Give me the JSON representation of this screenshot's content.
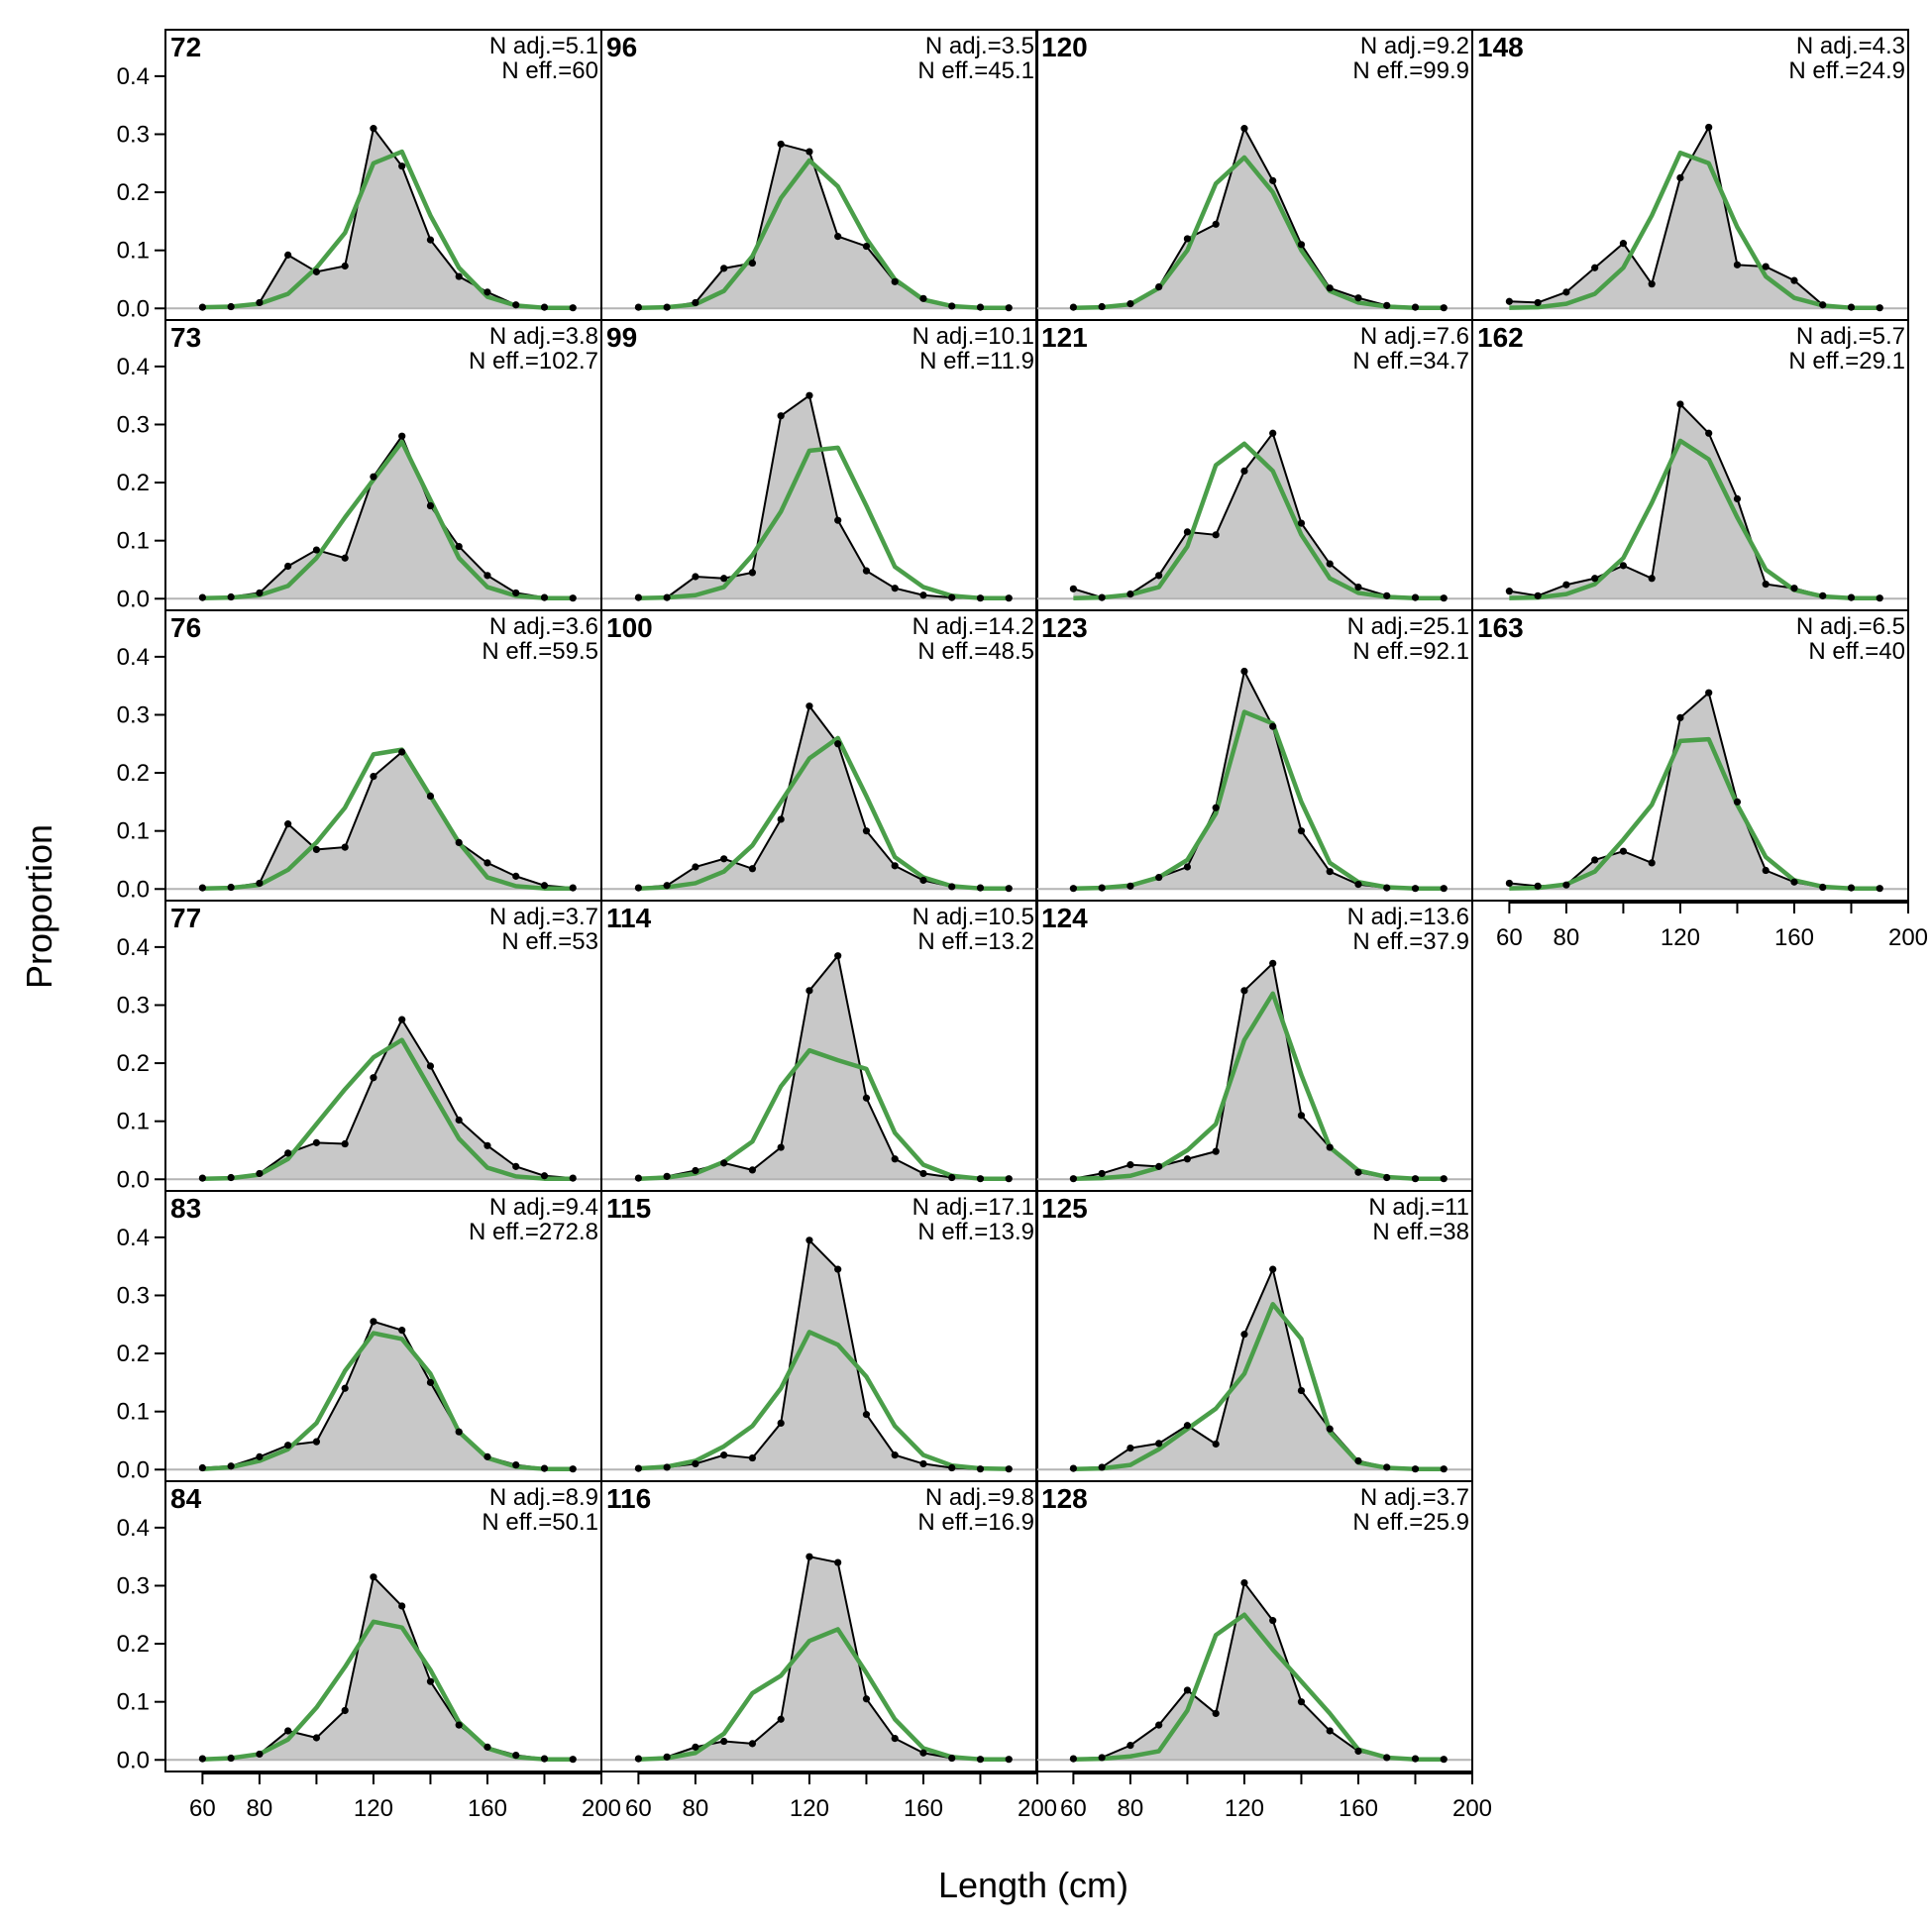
{
  "chart_data": {
    "type": "line",
    "xlabel": "Length (cm)",
    "ylabel": "Proportion",
    "xlim": [
      47,
      200
    ],
    "ylim": [
      -0.02,
      0.48
    ],
    "x_ticks": [
      60,
      80,
      120,
      160,
      200
    ],
    "x_minor_ticks": [
      100,
      140,
      180
    ],
    "y_ticks": [
      0,
      0.1,
      0.2,
      0.3,
      0.4
    ],
    "y_tick_labels": [
      "0.0",
      "0.1",
      "0.2",
      "0.3",
      "0.4"
    ],
    "x": [
      60,
      70,
      80,
      90,
      100,
      110,
      120,
      130,
      140,
      150,
      160,
      170,
      180,
      190
    ],
    "series_styles": {
      "observed": {
        "line": "#000000",
        "fill": "#c8c8c8"
      },
      "expected": {
        "line": "#4a9e49"
      }
    },
    "panels": [
      {
        "label": "72",
        "n_adj": "N adj.=5.1",
        "n_eff": "N eff.=60",
        "observed": [
          0.002,
          0.003,
          0.01,
          0.092,
          0.063,
          0.073,
          0.31,
          0.245,
          0.118,
          0.055,
          0.028,
          0.006,
          0.002,
          0.001
        ],
        "expected": [
          0.002,
          0.003,
          0.008,
          0.025,
          0.07,
          0.13,
          0.25,
          0.27,
          0.16,
          0.07,
          0.02,
          0.005,
          0.001,
          0.001
        ]
      },
      {
        "label": "96",
        "n_adj": "N adj.=3.5",
        "n_eff": "N eff.=45.1",
        "observed": [
          0.002,
          0.002,
          0.01,
          0.069,
          0.078,
          0.283,
          0.27,
          0.124,
          0.107,
          0.046,
          0.017,
          0.004,
          0.002,
          0.001
        ],
        "expected": [
          0.001,
          0.002,
          0.007,
          0.03,
          0.09,
          0.19,
          0.255,
          0.21,
          0.12,
          0.05,
          0.015,
          0.004,
          0.001,
          0.001
        ]
      },
      {
        "label": "120",
        "n_adj": "N adj.=9.2",
        "n_eff": "N eff.=99.9",
        "observed": [
          0.002,
          0.003,
          0.008,
          0.037,
          0.12,
          0.145,
          0.31,
          0.22,
          0.11,
          0.035,
          0.018,
          0.005,
          0.002,
          0.001
        ],
        "expected": [
          0.001,
          0.002,
          0.007,
          0.035,
          0.1,
          0.215,
          0.26,
          0.2,
          0.1,
          0.03,
          0.01,
          0.003,
          0.001,
          0.001
        ]
      },
      {
        "label": "148",
        "n_adj": "N adj.=4.3",
        "n_eff": "N eff.=24.9",
        "observed": [
          0.012,
          0.01,
          0.028,
          0.07,
          0.112,
          0.042,
          0.225,
          0.312,
          0.075,
          0.072,
          0.048,
          0.006,
          0.002,
          0.001
        ],
        "expected": [
          0.001,
          0.002,
          0.008,
          0.025,
          0.07,
          0.16,
          0.268,
          0.25,
          0.14,
          0.055,
          0.018,
          0.005,
          0.001,
          0.001
        ]
      },
      {
        "label": "73",
        "n_adj": "N adj.=3.8",
        "n_eff": "N eff.=102.7",
        "observed": [
          0.002,
          0.003,
          0.01,
          0.056,
          0.084,
          0.07,
          0.21,
          0.28,
          0.16,
          0.09,
          0.04,
          0.01,
          0.002,
          0.001
        ],
        "expected": [
          0.001,
          0.002,
          0.006,
          0.022,
          0.07,
          0.14,
          0.205,
          0.27,
          0.17,
          0.07,
          0.02,
          0.005,
          0.001,
          0.001
        ]
      },
      {
        "label": "99",
        "n_adj": "N adj.=10.1",
        "n_eff": "N eff.=11.9",
        "observed": [
          0.002,
          0.002,
          0.038,
          0.035,
          0.045,
          0.315,
          0.35,
          0.135,
          0.048,
          0.018,
          0.006,
          0.002,
          0.001,
          0.001
        ],
        "expected": [
          0.001,
          0.002,
          0.006,
          0.02,
          0.075,
          0.15,
          0.255,
          0.26,
          0.16,
          0.055,
          0.02,
          0.005,
          0.001,
          0.001
        ]
      },
      {
        "label": "121",
        "n_adj": "N adj.=7.6",
        "n_eff": "N eff.=34.7",
        "observed": [
          0.017,
          0.002,
          0.008,
          0.04,
          0.115,
          0.11,
          0.22,
          0.285,
          0.13,
          0.06,
          0.02,
          0.005,
          0.002,
          0.001
        ],
        "expected": [
          0.001,
          0.002,
          0.007,
          0.02,
          0.09,
          0.23,
          0.267,
          0.22,
          0.11,
          0.035,
          0.01,
          0.003,
          0.001,
          0.001
        ]
      },
      {
        "label": "162",
        "n_adj": "N adj.=5.7",
        "n_eff": "N eff.=29.1",
        "observed": [
          0.013,
          0.005,
          0.024,
          0.035,
          0.057,
          0.035,
          0.335,
          0.285,
          0.172,
          0.025,
          0.018,
          0.005,
          0.002,
          0.001
        ],
        "expected": [
          0.001,
          0.002,
          0.008,
          0.025,
          0.07,
          0.165,
          0.272,
          0.24,
          0.14,
          0.05,
          0.015,
          0.004,
          0.001,
          0.001
        ]
      },
      {
        "label": "76",
        "n_adj": "N adj.=3.6",
        "n_eff": "N eff.=59.5",
        "observed": [
          0.002,
          0.003,
          0.01,
          0.112,
          0.068,
          0.072,
          0.194,
          0.236,
          0.16,
          0.08,
          0.045,
          0.022,
          0.006,
          0.002
        ],
        "expected": [
          0.001,
          0.002,
          0.007,
          0.033,
          0.08,
          0.14,
          0.232,
          0.24,
          0.16,
          0.08,
          0.02,
          0.005,
          0.001,
          0.001
        ]
      },
      {
        "label": "100",
        "n_adj": "N adj.=14.2",
        "n_eff": "N eff.=48.5",
        "observed": [
          0.002,
          0.006,
          0.038,
          0.052,
          0.035,
          0.12,
          0.315,
          0.25,
          0.1,
          0.04,
          0.015,
          0.004,
          0.002,
          0.001
        ],
        "expected": [
          0.001,
          0.003,
          0.01,
          0.03,
          0.075,
          0.15,
          0.225,
          0.26,
          0.16,
          0.055,
          0.02,
          0.005,
          0.001,
          0.001
        ]
      },
      {
        "label": "123",
        "n_adj": "N adj.=25.1",
        "n_eff": "N eff.=92.1",
        "observed": [
          0.001,
          0.002,
          0.005,
          0.02,
          0.038,
          0.14,
          0.375,
          0.28,
          0.1,
          0.03,
          0.008,
          0.002,
          0.001,
          0.001
        ],
        "expected": [
          0.001,
          0.002,
          0.006,
          0.02,
          0.05,
          0.13,
          0.305,
          0.285,
          0.15,
          0.045,
          0.012,
          0.003,
          0.001,
          0.001
        ]
      },
      {
        "label": "163",
        "n_adj": "N adj.=6.5",
        "n_eff": "N eff.=40",
        "observed": [
          0.01,
          0.005,
          0.007,
          0.05,
          0.065,
          0.045,
          0.295,
          0.338,
          0.15,
          0.032,
          0.012,
          0.003,
          0.002,
          0.001
        ],
        "expected": [
          0.001,
          0.002,
          0.008,
          0.03,
          0.085,
          0.145,
          0.255,
          0.258,
          0.145,
          0.055,
          0.015,
          0.004,
          0.001,
          0.001
        ]
      },
      {
        "label": "77",
        "n_adj": "N adj.=3.7",
        "n_eff": "N eff.=53",
        "observed": [
          0.002,
          0.003,
          0.01,
          0.045,
          0.063,
          0.061,
          0.175,
          0.275,
          0.195,
          0.102,
          0.058,
          0.022,
          0.006,
          0.002
        ],
        "expected": [
          0.001,
          0.002,
          0.008,
          0.035,
          0.095,
          0.155,
          0.21,
          0.24,
          0.155,
          0.07,
          0.02,
          0.005,
          0.001,
          0.001
        ]
      },
      {
        "label": "114",
        "n_adj": "N adj.=10.5",
        "n_eff": "N eff.=13.2",
        "observed": [
          0.002,
          0.005,
          0.015,
          0.028,
          0.016,
          0.055,
          0.325,
          0.385,
          0.14,
          0.035,
          0.01,
          0.003,
          0.001,
          0.001
        ],
        "expected": [
          0.001,
          0.003,
          0.01,
          0.03,
          0.065,
          0.16,
          0.222,
          0.205,
          0.19,
          0.08,
          0.025,
          0.006,
          0.001,
          0.001
        ]
      },
      {
        "label": "124",
        "n_adj": "N adj.=13.6",
        "n_eff": "N eff.=37.9",
        "observed": [
          0.001,
          0.01,
          0.025,
          0.022,
          0.035,
          0.048,
          0.325,
          0.372,
          0.11,
          0.055,
          0.012,
          0.003,
          0.001,
          0.001
        ],
        "expected": [
          0.001,
          0.002,
          0.006,
          0.02,
          0.05,
          0.095,
          0.24,
          0.32,
          0.18,
          0.055,
          0.015,
          0.004,
          0.001,
          0.001
        ]
      },
      {
        "label": "83",
        "n_adj": "N adj.=9.4",
        "n_eff": "N eff.=272.8",
        "observed": [
          0.003,
          0.006,
          0.022,
          0.042,
          0.048,
          0.14,
          0.255,
          0.24,
          0.15,
          0.065,
          0.022,
          0.008,
          0.002,
          0.001
        ],
        "expected": [
          0.001,
          0.004,
          0.015,
          0.035,
          0.08,
          0.17,
          0.235,
          0.225,
          0.165,
          0.065,
          0.02,
          0.005,
          0.001,
          0.001
        ]
      },
      {
        "label": "115",
        "n_adj": "N adj.=17.1",
        "n_eff": "N eff.=13.9",
        "observed": [
          0.002,
          0.004,
          0.01,
          0.025,
          0.02,
          0.08,
          0.395,
          0.345,
          0.095,
          0.025,
          0.01,
          0.003,
          0.001,
          0.001
        ],
        "expected": [
          0.002,
          0.005,
          0.015,
          0.04,
          0.075,
          0.14,
          0.237,
          0.215,
          0.16,
          0.075,
          0.025,
          0.007,
          0.002,
          0.001
        ]
      },
      {
        "label": "125",
        "n_adj": "N adj.=11",
        "n_eff": "N eff.=38",
        "observed": [
          0.002,
          0.004,
          0.037,
          0.045,
          0.076,
          0.044,
          0.233,
          0.345,
          0.136,
          0.07,
          0.015,
          0.004,
          0.001,
          0.001
        ],
        "expected": [
          0.001,
          0.002,
          0.008,
          0.035,
          0.07,
          0.105,
          0.165,
          0.285,
          0.225,
          0.065,
          0.012,
          0.003,
          0.001,
          0.001
        ]
      },
      {
        "label": "84",
        "n_adj": "N adj.=8.9",
        "n_eff": "N eff.=50.1",
        "observed": [
          0.002,
          0.003,
          0.01,
          0.05,
          0.038,
          0.085,
          0.315,
          0.265,
          0.135,
          0.06,
          0.022,
          0.008,
          0.002,
          0.001
        ],
        "expected": [
          0.001,
          0.003,
          0.01,
          0.035,
          0.09,
          0.16,
          0.238,
          0.228,
          0.155,
          0.065,
          0.02,
          0.005,
          0.001,
          0.001
        ]
      },
      {
        "label": "116",
        "n_adj": "N adj.=9.8",
        "n_eff": "N eff.=16.9",
        "observed": [
          0.002,
          0.005,
          0.022,
          0.032,
          0.028,
          0.07,
          0.35,
          0.34,
          0.105,
          0.037,
          0.012,
          0.003,
          0.001,
          0.001
        ],
        "expected": [
          0.001,
          0.003,
          0.012,
          0.045,
          0.115,
          0.145,
          0.205,
          0.225,
          0.15,
          0.07,
          0.02,
          0.005,
          0.001,
          0.001
        ]
      },
      {
        "label": "128",
        "n_adj": "N adj.=3.7",
        "n_eff": "N eff.=25.9",
        "observed": [
          0.002,
          0.004,
          0.025,
          0.06,
          0.12,
          0.08,
          0.305,
          0.24,
          0.1,
          0.05,
          0.015,
          0.004,
          0.002,
          0.001
        ],
        "expected": [
          0.001,
          0.002,
          0.006,
          0.015,
          0.085,
          0.215,
          0.25,
          0.19,
          0.135,
          0.08,
          0.018,
          0.004,
          0.001,
          0.001
        ]
      }
    ]
  }
}
